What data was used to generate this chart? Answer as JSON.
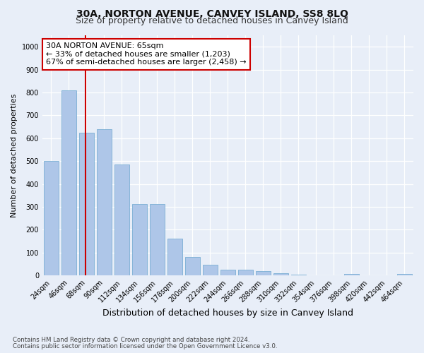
{
  "title": "30A, NORTON AVENUE, CANVEY ISLAND, SS8 8LQ",
  "subtitle": "Size of property relative to detached houses in Canvey Island",
  "xlabel": "Distribution of detached houses by size in Canvey Island",
  "ylabel": "Number of detached properties",
  "footnote1": "Contains HM Land Registry data © Crown copyright and database right 2024.",
  "footnote2": "Contains public sector information licensed under the Open Government Licence v3.0.",
  "categories": [
    "24sqm",
    "46sqm",
    "68sqm",
    "90sqm",
    "112sqm",
    "134sqm",
    "156sqm",
    "178sqm",
    "200sqm",
    "222sqm",
    "244sqm",
    "266sqm",
    "288sqm",
    "310sqm",
    "332sqm",
    "354sqm",
    "376sqm",
    "398sqm",
    "420sqm",
    "442sqm",
    "464sqm"
  ],
  "values": [
    500,
    810,
    625,
    640,
    485,
    312,
    312,
    160,
    80,
    47,
    25,
    25,
    20,
    11,
    5,
    2,
    0,
    8,
    0,
    0,
    8
  ],
  "bar_color": "#aec6e8",
  "bar_edge_color": "#7bafd4",
  "vline_color": "#cc0000",
  "annotation_text": "30A NORTON AVENUE: 65sqm\n← 33% of detached houses are smaller (1,203)\n67% of semi-detached houses are larger (2,458) →",
  "annotation_box_facecolor": "#ffffff",
  "annotation_box_edgecolor": "#cc0000",
  "ylim": [
    0,
    1050
  ],
  "yticks": [
    0,
    100,
    200,
    300,
    400,
    500,
    600,
    700,
    800,
    900,
    1000
  ],
  "bg_color": "#e8eef8",
  "plot_bg_color": "#e8eef8",
  "grid_color": "#ffffff",
  "title_fontsize": 10,
  "subtitle_fontsize": 9,
  "xlabel_fontsize": 9,
  "ylabel_fontsize": 8,
  "tick_fontsize": 7,
  "annot_fontsize": 8
}
